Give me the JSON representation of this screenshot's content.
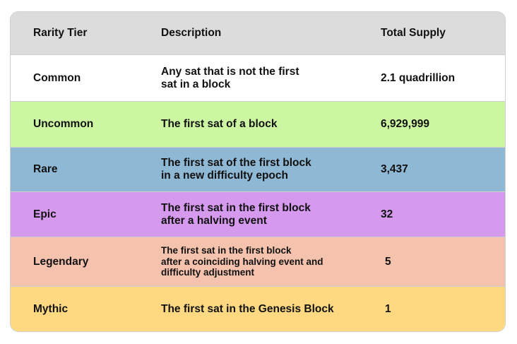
{
  "table": {
    "headers": [
      "Rarity Tier",
      "Description",
      "Total Supply"
    ],
    "header_bg": "#dcdcdc",
    "rows": [
      {
        "tier": "Common",
        "description": "Any sat that is not the first\nsat in a block",
        "supply": "2.1 quadrillion",
        "bg": "#ffffff"
      },
      {
        "tier": "Uncommon",
        "description": "The first sat of a block",
        "supply": "6,929,999",
        "bg": "#cdf6a3"
      },
      {
        "tier": "Rare",
        "description": "The first sat of the first block\nin a new difficulty epoch",
        "supply": "3,437",
        "bg": "#8fb8d5"
      },
      {
        "tier": "Epic",
        "description": "The first sat in the first block\nafter a halving event",
        "supply": "32",
        "bg": "#d599ee"
      },
      {
        "tier": "Legendary",
        "description": "The first sat in the first block\nafter a coinciding halving event and\ndifficulty adjustment",
        "supply": "5",
        "bg": "#f4c2ad"
      },
      {
        "tier": "Mythic",
        "description": "The first sat in the Genesis Block",
        "supply": "1",
        "bg": "#fed982"
      }
    ]
  }
}
